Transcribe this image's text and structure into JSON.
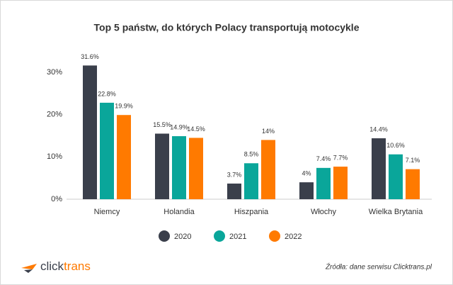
{
  "chart_data": {
    "type": "bar",
    "title": "Top 5 państw, do których Polacy transportują motocykle",
    "categories": [
      "Niemcy",
      "Holandia",
      "Hiszpania",
      "Włochy",
      "Wielka Brytania"
    ],
    "series": [
      {
        "name": "2020",
        "color": "#3a3f4b",
        "values": [
          31.6,
          15.5,
          3.7,
          4,
          14.4
        ],
        "value_labels": [
          "31.6%",
          "15.5%",
          "3.7%",
          "4%",
          "14.4%"
        ]
      },
      {
        "name": "2021",
        "color": "#0aa69a",
        "values": [
          22.8,
          14.9,
          8.5,
          7.4,
          10.6
        ],
        "value_labels": [
          "22.8%",
          "14.9%",
          "8.5%",
          "7.4%",
          "10.6%"
        ]
      },
      {
        "name": "2022",
        "color": "#ff7a00",
        "values": [
          19.9,
          14.5,
          14,
          7.7,
          7.1
        ],
        "value_labels": [
          "19.9%",
          "14.5%",
          "14%",
          "7.7%",
          "7.1%"
        ]
      }
    ],
    "ylim": [
      0,
      32
    ],
    "yticks": [
      {
        "value": 0,
        "label": "0%"
      },
      {
        "value": 10,
        "label": "10%"
      },
      {
        "value": 20,
        "label": "20%"
      },
      {
        "value": 30,
        "label": "30%"
      }
    ],
    "grid": false,
    "legend": "bottom"
  },
  "footer": {
    "logo_part1": "click",
    "logo_part2": "trans",
    "source": "Źródła: dane serwisu Clicktrans.pl"
  }
}
